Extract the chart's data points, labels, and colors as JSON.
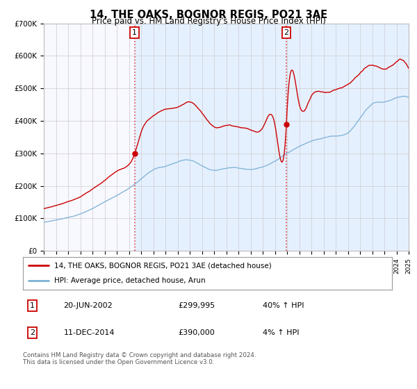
{
  "title": "14, THE OAKS, BOGNOR REGIS, PO21 3AE",
  "subtitle": "Price paid vs. HM Land Registry's House Price Index (HPI)",
  "legend_line1": "14, THE OAKS, BOGNOR REGIS, PO21 3AE (detached house)",
  "legend_line2": "HPI: Average price, detached house, Arun",
  "annotation1_label": "1",
  "annotation1_date": "20-JUN-2002",
  "annotation1_price": "£299,995",
  "annotation1_hpi": "40% ↑ HPI",
  "annotation2_label": "2",
  "annotation2_date": "11-DEC-2014",
  "annotation2_price": "£390,000",
  "annotation2_hpi": "4% ↑ HPI",
  "footer": "Contains HM Land Registry data © Crown copyright and database right 2024.\nThis data is licensed under the Open Government Licence v3.0.",
  "price_line_color": "#cc0000",
  "hpi_line_color": "#7ab0d4",
  "annotation_vline_color": "#dd4444",
  "grid_color": "#cccccc",
  "background_color": "#ffffff",
  "plot_bg_color": "#f8f8ff",
  "shaded_bg_color": "#ddeeff",
  "ylim": [
    0,
    700000
  ],
  "yticks": [
    0,
    100000,
    200000,
    300000,
    400000,
    500000,
    600000,
    700000
  ],
  "ytick_labels": [
    "£0",
    "£100K",
    "£200K",
    "£300K",
    "£400K",
    "£500K",
    "£600K",
    "£700K"
  ],
  "xstart_year": 1995,
  "xend_year": 2025,
  "sale1_year": 2002.47,
  "sale1_price": 299995,
  "sale2_year": 2014.94,
  "sale2_price": 390000
}
